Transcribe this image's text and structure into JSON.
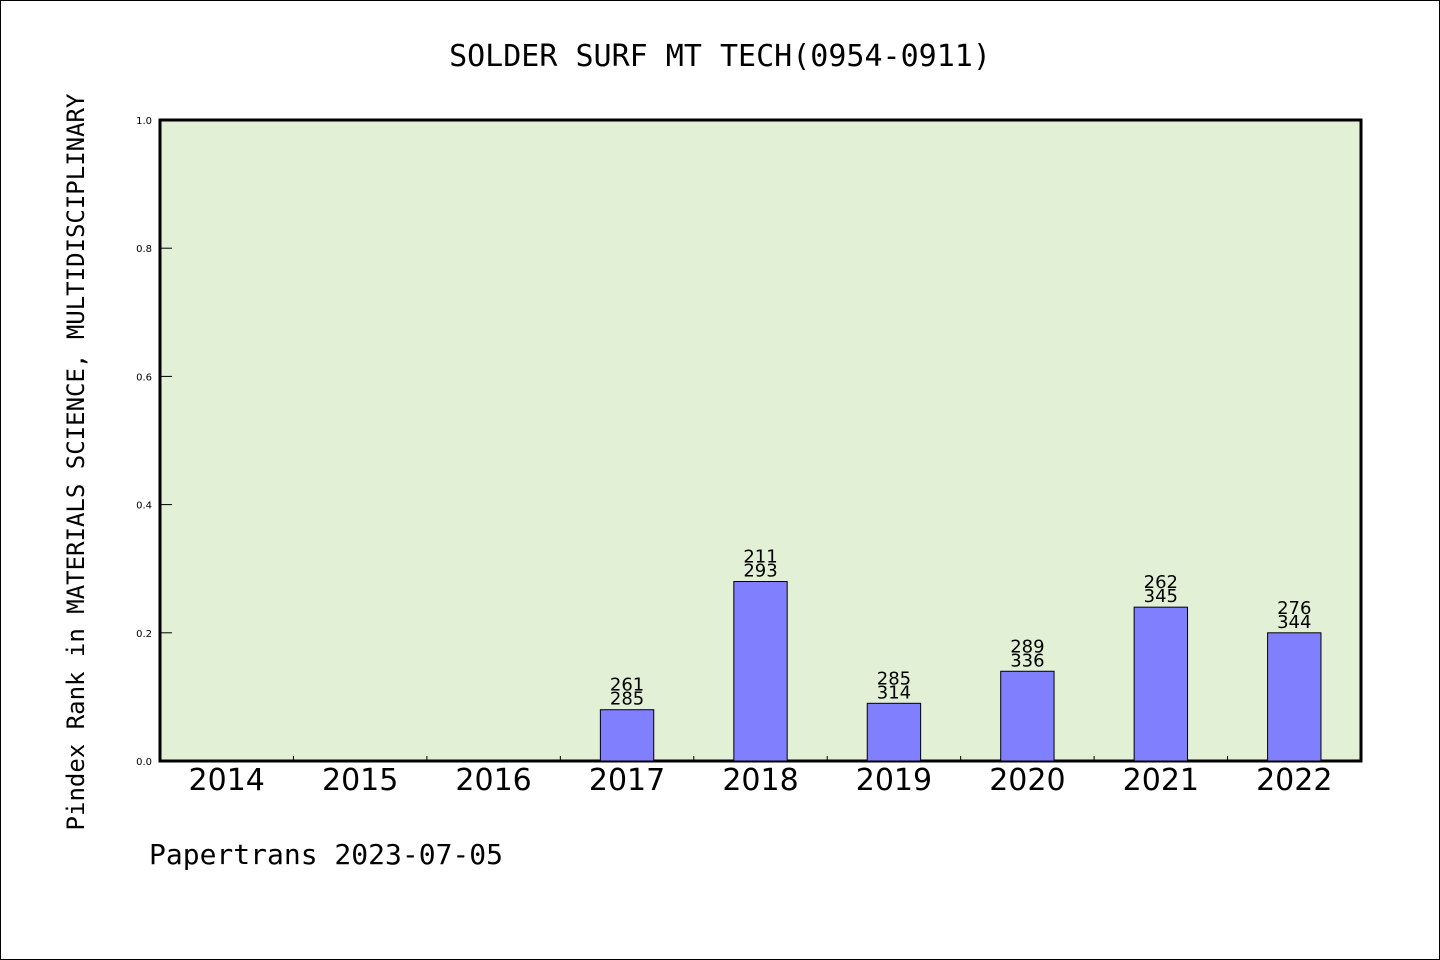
{
  "chart_data": {
    "type": "bar",
    "title": "SOLDER SURF MT TECH(0954-0911)",
    "ylabel": "Pindex Rank in MATERIALS SCIENCE, MULTIDISCIPLINARY",
    "xlabel": "",
    "categories": [
      "2014",
      "2015",
      "2016",
      "2017",
      "2018",
      "2019",
      "2020",
      "2021",
      "2022"
    ],
    "values": [
      0,
      0,
      0,
      0.08,
      0.28,
      0.09,
      0.14,
      0.24,
      0.2
    ],
    "rank_labels": [
      "",
      "",
      "",
      "261",
      "211",
      "285",
      "289",
      "262",
      "276"
    ],
    "total_labels": [
      "",
      "",
      "",
      "285",
      "293",
      "314",
      "336",
      "345",
      "344"
    ],
    "ylim": [
      0,
      1.0
    ],
    "yticks": [
      "0.0",
      "0.2",
      "0.4",
      "0.6",
      "0.8",
      "1.0"
    ],
    "grid": false,
    "legend": "none",
    "colors": {
      "bar": "#8080ff",
      "plot_background": "#e2f0d6",
      "axis": "#000000"
    }
  },
  "footer": "Papertrans 2023-07-05"
}
